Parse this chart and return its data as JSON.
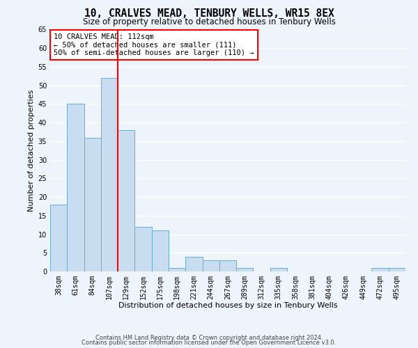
{
  "title": "10, CRALVES MEAD, TENBURY WELLS, WR15 8EX",
  "subtitle": "Size of property relative to detached houses in Tenbury Wells",
  "xlabel": "Distribution of detached houses by size in Tenbury Wells",
  "ylabel": "Number of detached properties",
  "bar_labels": [
    "38sqm",
    "61sqm",
    "84sqm",
    "107sqm",
    "129sqm",
    "152sqm",
    "175sqm",
    "198sqm",
    "221sqm",
    "244sqm",
    "267sqm",
    "289sqm",
    "312sqm",
    "335sqm",
    "358sqm",
    "381sqm",
    "404sqm",
    "426sqm",
    "449sqm",
    "472sqm",
    "495sqm"
  ],
  "bar_values": [
    18,
    45,
    36,
    52,
    38,
    12,
    11,
    1,
    4,
    3,
    3,
    1,
    0,
    1,
    0,
    0,
    0,
    0,
    0,
    1,
    1
  ],
  "bar_color": "#c9ddf0",
  "bar_edgecolor": "#6aabd2",
  "vline_x": 3.5,
  "vline_color": "red",
  "annotation_title": "10 CRALVES MEAD: 112sqm",
  "annotation_line1": "← 50% of detached houses are smaller (111)",
  "annotation_line2": "50% of semi-detached houses are larger (110) →",
  "annotation_box_color": "white",
  "annotation_box_edgecolor": "red",
  "ylim": [
    0,
    65
  ],
  "yticks": [
    0,
    5,
    10,
    15,
    20,
    25,
    30,
    35,
    40,
    45,
    50,
    55,
    60,
    65
  ],
  "footer1": "Contains HM Land Registry data © Crown copyright and database right 2024.",
  "footer2": "Contains public sector information licensed under the Open Government Licence v3.0.",
  "bg_color": "#eef4fb",
  "grid_color": "white",
  "title_fontsize": 10.5,
  "subtitle_fontsize": 8.5,
  "axis_label_fontsize": 8,
  "tick_fontsize": 7,
  "annotation_fontsize": 7.5,
  "footer_fontsize": 6.0
}
